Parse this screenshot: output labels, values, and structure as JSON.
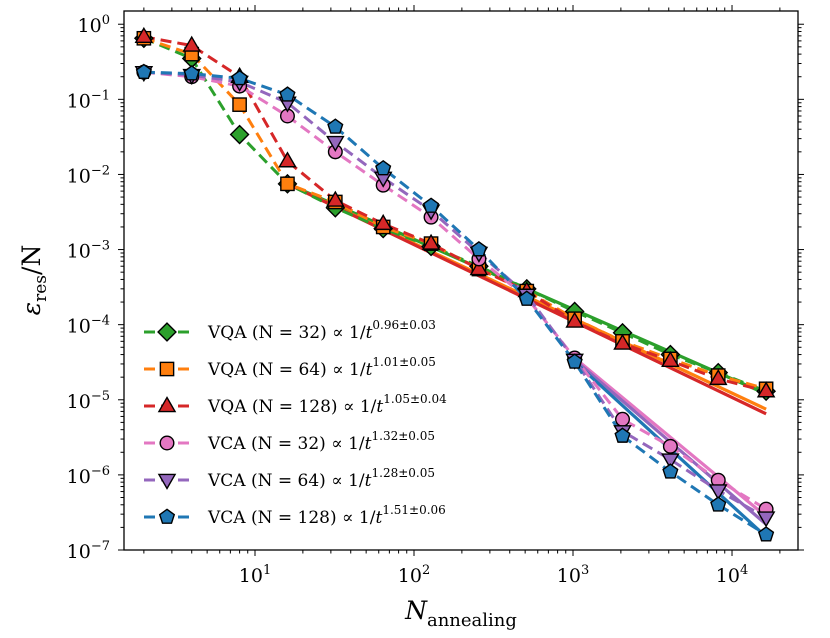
{
  "chart_data": {
    "type": "line",
    "scale": {
      "x": "log",
      "y": "log"
    },
    "xlim": [
      1.5,
      26000
    ],
    "ylim": [
      1e-07,
      1.5
    ],
    "xlabel": {
      "main": "N",
      "sub": "annealing"
    },
    "ylabel": {
      "main": "ε",
      "sub": "res",
      "suffix": "/N"
    },
    "x_ticks": [
      {
        "value": 10,
        "base": "10",
        "exp": "1"
      },
      {
        "value": 100,
        "base": "10",
        "exp": "2"
      },
      {
        "value": 1000,
        "base": "10",
        "exp": "3"
      },
      {
        "value": 10000,
        "base": "10",
        "exp": "4"
      }
    ],
    "y_ticks": [
      {
        "value": 1,
        "base": "10",
        "exp": "0"
      },
      {
        "value": 0.1,
        "base": "10",
        "exp": "−1"
      },
      {
        "value": 0.01,
        "base": "10",
        "exp": "−2"
      },
      {
        "value": 0.001,
        "base": "10",
        "exp": "−3"
      },
      {
        "value": 0.0001,
        "base": "10",
        "exp": "−4"
      },
      {
        "value": 1e-05,
        "base": "10",
        "exp": "−5"
      },
      {
        "value": 1e-06,
        "base": "10",
        "exp": "−6"
      },
      {
        "value": 1e-07,
        "base": "10",
        "exp": "−7"
      }
    ],
    "x": [
      2,
      4,
      8,
      16,
      32,
      64,
      128,
      256,
      512,
      1024,
      2048,
      4096,
      8192,
      16384
    ],
    "legend_position": "lower-left",
    "series": [
      {
        "name": "VQA (N = 32)",
        "exponent": "0.96±0.03",
        "color": "#2ca02c",
        "marker": "diamond",
        "values": [
          0.65,
          0.35,
          0.034,
          0.0075,
          0.0036,
          0.0019,
          0.0011,
          0.0006,
          0.0003,
          0.00015,
          7.8e-05,
          4e-05,
          2.3e-05,
          1.3e-05
        ],
        "fit": {
          "x_start": 16,
          "x_end": 16384,
          "y_start": 0.0075,
          "y_end": 1.2e-05
        }
      },
      {
        "name": "VQA (N = 64)",
        "exponent": "1.01±0.05",
        "color": "#ff7f0e",
        "marker": "square",
        "values": [
          0.65,
          0.4,
          0.085,
          0.0075,
          0.0043,
          0.002,
          0.0012,
          0.00055,
          0.00028,
          0.00012,
          6e-05,
          3.5e-05,
          2.1e-05,
          1.4e-05
        ],
        "fit": {
          "x_start": 16,
          "x_end": 16384,
          "y_start": 0.0075,
          "y_end": 7.5e-06
        }
      },
      {
        "name": "VQA (N = 128)",
        "exponent": "1.05±0.04",
        "color": "#d62728",
        "marker": "triangle-up",
        "values": [
          0.68,
          0.52,
          0.2,
          0.015,
          0.0045,
          0.0022,
          0.0012,
          0.00055,
          0.00028,
          0.00011,
          5.6e-05,
          3.3e-05,
          1.9e-05,
          1.3e-05
        ],
        "fit": {
          "x_start": 16,
          "x_end": 16384,
          "y_start": 0.0075,
          "y_end": 6.5e-06
        }
      },
      {
        "name": "VCA (N = 32)",
        "exponent": "1.32±0.05",
        "color": "#e377c2",
        "marker": "circle",
        "values": [
          0.23,
          0.2,
          0.15,
          0.06,
          0.02,
          0.0072,
          0.0027,
          0.00075,
          0.00023,
          3.6e-05,
          5.5e-06,
          2.4e-06,
          8.5e-07,
          3.5e-07
        ],
        "fit": {
          "x_start": 1024,
          "x_end": 16384,
          "y_start": 3.6e-05,
          "y_end": 2.8e-07
        }
      },
      {
        "name": "VCA (N = 64)",
        "exponent": "1.28±0.05",
        "color": "#9467bd",
        "marker": "triangle-down",
        "values": [
          0.23,
          0.21,
          0.17,
          0.09,
          0.027,
          0.009,
          0.0033,
          0.0009,
          0.00025,
          3.4e-05,
          3.8e-06,
          1.6e-06,
          6.2e-07,
          2.7e-07
        ],
        "fit": {
          "x_start": 1024,
          "x_end": 16384,
          "y_start": 3.4e-05,
          "y_end": 2.2e-07
        }
      },
      {
        "name": "VCA (N = 128)",
        "exponent": "1.51±0.06",
        "color": "#1f77b4",
        "marker": "pentagon",
        "values": [
          0.23,
          0.22,
          0.19,
          0.115,
          0.043,
          0.012,
          0.0038,
          0.001,
          0.00022,
          3.2e-05,
          3.3e-06,
          1.1e-06,
          4e-07,
          1.6e-07
        ],
        "fit": {
          "x_start": 1024,
          "x_end": 16384,
          "y_start": 3.2e-05,
          "y_end": 1.5e-07
        }
      }
    ]
  }
}
